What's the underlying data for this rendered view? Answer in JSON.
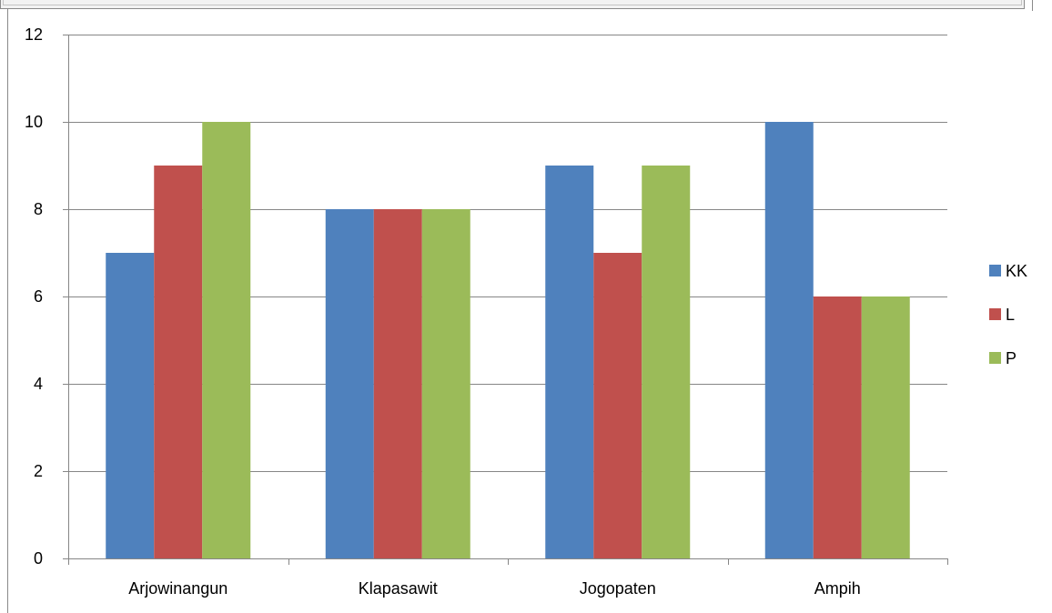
{
  "chart_data": {
    "type": "bar",
    "title": "",
    "xlabel": "",
    "ylabel": "",
    "categories": [
      "Arjowinangun",
      "Klapasawit",
      "Jogopaten",
      "Ampih"
    ],
    "series": [
      {
        "name": "KK",
        "values": [
          7,
          8,
          9,
          10
        ],
        "color": "#4f81bd"
      },
      {
        "name": "L",
        "values": [
          9,
          8,
          7,
          6
        ],
        "color": "#c0504d"
      },
      {
        "name": "P",
        "values": [
          10,
          8,
          9,
          6
        ],
        "color": "#9bbb59"
      }
    ],
    "ylim": [
      0,
      12
    ],
    "yticks": [
      "0",
      "2",
      "4",
      "6",
      "8",
      "10",
      "12"
    ],
    "grid": true,
    "gridline_color": "#868686",
    "legend_position": "right"
  }
}
